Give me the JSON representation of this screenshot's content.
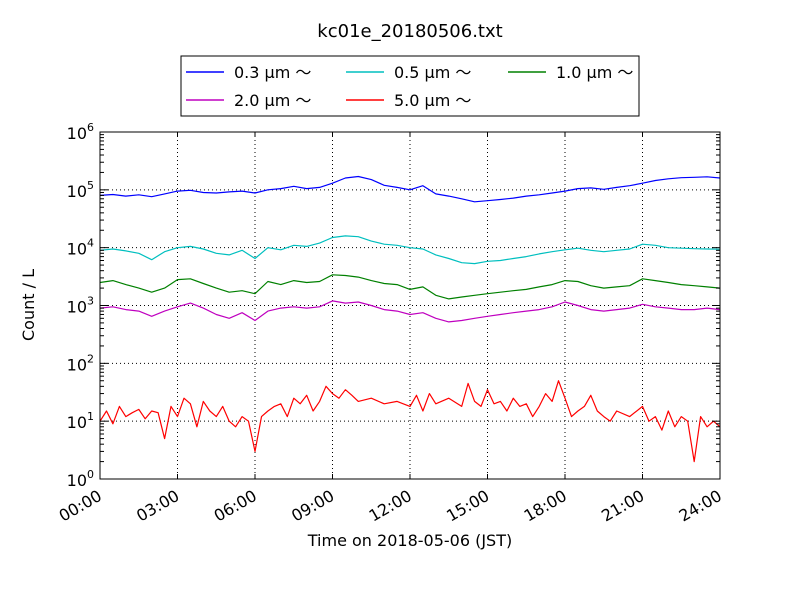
{
  "chart_data": {
    "type": "line",
    "title": "kc01e_20180506.txt",
    "xlabel": "Time on 2018-05-06 (JST)",
    "ylabel": "Count / L",
    "yscale": "log",
    "ylim": [
      1,
      1000000
    ],
    "xlim": [
      0,
      24
    ],
    "x_tick_labels": [
      "00:00",
      "03:00",
      "06:00",
      "09:00",
      "12:00",
      "15:00",
      "18:00",
      "21:00",
      "24:00"
    ],
    "y_tick_labels": [
      {
        "base": "10",
        "exp": "0"
      },
      {
        "base": "10",
        "exp": "1"
      },
      {
        "base": "10",
        "exp": "2"
      },
      {
        "base": "10",
        "exp": "3"
      },
      {
        "base": "10",
        "exp": "4"
      },
      {
        "base": "10",
        "exp": "5"
      },
      {
        "base": "10",
        "exp": "6"
      }
    ],
    "grid": true,
    "legend_position": "top-center",
    "series": [
      {
        "name": "0.3 μm ～",
        "color": "#0000ff",
        "x": [
          0,
          0.5,
          1,
          1.5,
          2,
          2.5,
          3,
          3.5,
          4,
          4.5,
          5,
          5.5,
          6,
          6.5,
          7,
          7.5,
          8,
          8.5,
          9,
          9.5,
          10,
          10.5,
          11,
          11.5,
          12,
          12.5,
          13,
          13.5,
          14,
          14.5,
          15,
          15.5,
          16,
          16.5,
          17,
          17.5,
          18,
          18.5,
          19,
          19.5,
          20,
          20.5,
          21,
          21.5,
          22,
          22.5,
          23,
          23.5,
          24
        ],
        "values": [
          80000,
          83000,
          78000,
          82000,
          76000,
          85000,
          95000,
          98000,
          90000,
          88000,
          92000,
          95000,
          88000,
          100000,
          105000,
          115000,
          105000,
          110000,
          130000,
          160000,
          170000,
          150000,
          120000,
          110000,
          100000,
          118000,
          85000,
          78000,
          70000,
          62000,
          65000,
          68000,
          72000,
          78000,
          82000,
          88000,
          95000,
          105000,
          108000,
          102000,
          110000,
          118000,
          130000,
          145000,
          155000,
          162000,
          165000,
          168000,
          160000
        ]
      },
      {
        "name": "0.5 μm ～",
        "color": "#00bfbf",
        "x": [
          0,
          0.5,
          1,
          1.5,
          2,
          2.5,
          3,
          3.5,
          4,
          4.5,
          5,
          5.5,
          6,
          6.5,
          7,
          7.5,
          8,
          8.5,
          9,
          9.5,
          10,
          10.5,
          11,
          11.5,
          12,
          12.5,
          13,
          13.5,
          14,
          14.5,
          15,
          15.5,
          16,
          16.5,
          17,
          17.5,
          18,
          18.5,
          19,
          19.5,
          20,
          20.5,
          21,
          21.5,
          22,
          22.5,
          23,
          23.5,
          24
        ],
        "values": [
          9000,
          9500,
          8800,
          8000,
          6200,
          8500,
          10000,
          10500,
          9500,
          8000,
          7500,
          9000,
          6500,
          10000,
          9200,
          11000,
          10500,
          12000,
          15000,
          16000,
          15500,
          13000,
          11500,
          11000,
          10000,
          9500,
          7500,
          6500,
          5500,
          5300,
          5800,
          6000,
          6500,
          7000,
          7800,
          8500,
          9200,
          9800,
          9000,
          8500,
          9000,
          9500,
          11500,
          11000,
          10000,
          9800,
          9600,
          9500,
          9400
        ]
      },
      {
        "name": "1.0 μm ～",
        "color": "#008000",
        "x": [
          0,
          0.5,
          1,
          1.5,
          2,
          2.5,
          3,
          3.5,
          4,
          4.5,
          5,
          5.5,
          6,
          6.5,
          7,
          7.5,
          8,
          8.5,
          9,
          9.5,
          10,
          10.5,
          11,
          11.5,
          12,
          12.5,
          13,
          13.5,
          14,
          14.5,
          15,
          15.5,
          16,
          16.5,
          17,
          17.5,
          18,
          18.5,
          19,
          19.5,
          20,
          20.5,
          21,
          21.5,
          22,
          22.5,
          23,
          23.5,
          24
        ],
        "values": [
          2500,
          2700,
          2300,
          2000,
          1700,
          2000,
          2800,
          2900,
          2400,
          2000,
          1700,
          1800,
          1600,
          2600,
          2300,
          2700,
          2500,
          2600,
          3400,
          3300,
          3100,
          2700,
          2400,
          2300,
          1900,
          2100,
          1500,
          1300,
          1400,
          1500,
          1600,
          1700,
          1800,
          1900,
          2100,
          2300,
          2700,
          2600,
          2200,
          2000,
          2100,
          2200,
          2900,
          2700,
          2500,
          2300,
          2200,
          2100,
          2000
        ]
      },
      {
        "name": "2.0 μm ～",
        "color": "#bf00bf",
        "x": [
          0,
          0.5,
          1,
          1.5,
          2,
          2.5,
          3,
          3.5,
          4,
          4.5,
          5,
          5.5,
          6,
          6.5,
          7,
          7.5,
          8,
          8.5,
          9,
          9.5,
          10,
          10.5,
          11,
          11.5,
          12,
          12.5,
          13,
          13.5,
          14,
          14.5,
          15,
          15.5,
          16,
          16.5,
          17,
          17.5,
          18,
          18.5,
          19,
          19.5,
          20,
          20.5,
          21,
          21.5,
          22,
          22.5,
          23,
          23.5,
          24
        ],
        "values": [
          900,
          950,
          850,
          800,
          650,
          800,
          950,
          1100,
          900,
          700,
          600,
          750,
          550,
          800,
          900,
          950,
          900,
          950,
          1200,
          1100,
          1150,
          1000,
          850,
          800,
          700,
          750,
          600,
          520,
          550,
          600,
          650,
          700,
          750,
          800,
          850,
          950,
          1150,
          1000,
          850,
          800,
          850,
          900,
          1050,
          950,
          900,
          850,
          850,
          900,
          850
        ]
      },
      {
        "name": "5.0 μm ～",
        "color": "#ff0000",
        "x": [
          0,
          0.25,
          0.5,
          0.75,
          1,
          1.25,
          1.5,
          1.75,
          2,
          2.25,
          2.5,
          2.75,
          3,
          3.25,
          3.5,
          3.75,
          4,
          4.25,
          4.5,
          4.75,
          5,
          5.25,
          5.5,
          5.75,
          6,
          6.25,
          6.5,
          6.75,
          7,
          7.25,
          7.5,
          7.75,
          8,
          8.25,
          8.5,
          8.75,
          9,
          9.25,
          9.5,
          9.75,
          10,
          10.5,
          11,
          11.5,
          12,
          12.25,
          12.5,
          12.75,
          13,
          13.5,
          14,
          14.25,
          14.5,
          14.75,
          15,
          15.25,
          15.5,
          15.75,
          16,
          16.25,
          16.5,
          16.75,
          17,
          17.25,
          17.5,
          17.75,
          18,
          18.25,
          18.5,
          18.75,
          19,
          19.25,
          19.5,
          19.75,
          20,
          20.5,
          21,
          21.25,
          21.5,
          21.75,
          22,
          22.25,
          22.5,
          22.75,
          23,
          23.25,
          23.5,
          23.75,
          24
        ],
        "values": [
          10,
          15,
          9,
          18,
          12,
          14,
          16,
          11,
          15,
          14,
          5,
          18,
          12,
          25,
          20,
          8,
          22,
          15,
          12,
          18,
          10,
          8,
          12,
          10,
          3,
          12,
          15,
          18,
          20,
          12,
          25,
          20,
          28,
          15,
          22,
          40,
          30,
          25,
          35,
          28,
          22,
          25,
          20,
          22,
          18,
          28,
          15,
          30,
          20,
          25,
          18,
          45,
          22,
          18,
          35,
          20,
          22,
          15,
          25,
          18,
          20,
          12,
          18,
          30,
          22,
          50,
          25,
          12,
          15,
          18,
          28,
          15,
          12,
          10,
          15,
          12,
          18,
          10,
          12,
          7,
          15,
          8,
          12,
          10,
          2,
          12,
          8,
          10,
          8
        ]
      }
    ]
  }
}
